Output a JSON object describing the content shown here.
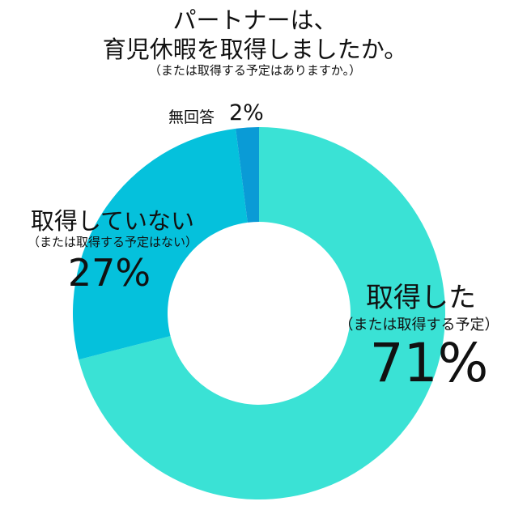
{
  "chart_data": {
    "type": "pie",
    "style": "donut",
    "title_line1": "パートナーは、",
    "title_line2": "育児休暇を取得しましたか。",
    "subtitle": "（または取得する予定はありますか。）",
    "slices": [
      {
        "label": "取得した",
        "sublabel": "（または取得する予定）",
        "value": 71,
        "value_text": "71%",
        "color": "#3ae2d5"
      },
      {
        "label": "取得していない",
        "sublabel": "（または取得する予定はない）",
        "value": 27,
        "value_text": "27%",
        "color": "#05c1dc"
      },
      {
        "label": "無回答",
        "sublabel": "",
        "value": 2,
        "value_text": "2%",
        "color": "#0a9bd6"
      }
    ]
  }
}
